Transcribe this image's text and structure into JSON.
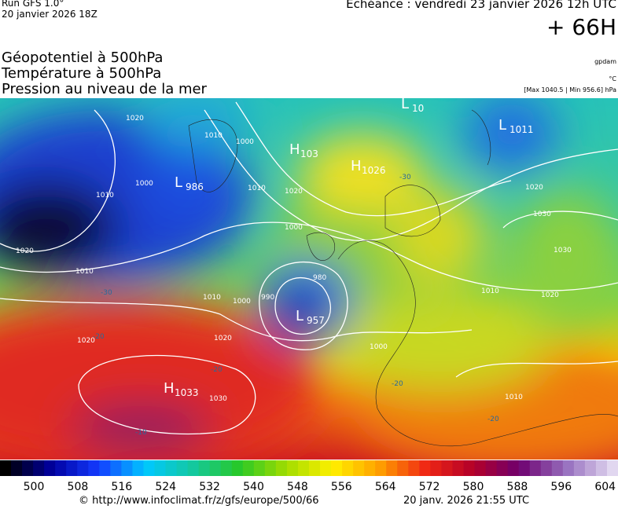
{
  "header": {
    "model": "Run GFS 1.0°",
    "run": "20 janvier 2026 18Z",
    "echeance": "Echéance : vendredi 23 janvier 2026 12h UTC",
    "lead": "+ 66H",
    "titles": [
      "Géopotentiel à 500hPa",
      "Température à 500hPa",
      "Pression au niveau de la mer"
    ],
    "units": [
      "gpdam",
      "°C",
      "[Max 1040.5 | Min 956.6] hPa"
    ]
  },
  "centers": [
    {
      "letter": "L",
      "value": "986"
    },
    {
      "letter": "H",
      "value": "103"
    },
    {
      "letter": "H",
      "value": "1026"
    },
    {
      "letter": "L",
      "value": "1011"
    },
    {
      "letter": "L",
      "value": "957"
    },
    {
      "letter": "H",
      "value": "1033"
    },
    {
      "letter": "L",
      "value": "10"
    }
  ],
  "isobar_labels": [
    "1020",
    "1010",
    "1000",
    "1010",
    "1000",
    "1010",
    "1020",
    "1000",
    "980",
    "990",
    "1000",
    "1010",
    "1020",
    "1020",
    "1010",
    "1020",
    "1030",
    "1010",
    "1020",
    "1030",
    "1030",
    "1020",
    "1000",
    "1010"
  ],
  "temperature_labels": [
    "-30",
    "-20",
    "-20",
    "-10",
    "-20",
    "-20",
    "-30"
  ],
  "colorbar": {
    "labels": [
      "500",
      "508",
      "516",
      "524",
      "532",
      "540",
      "548",
      "556",
      "564",
      "572",
      "580",
      "588",
      "596",
      "604"
    ]
  },
  "footer": {
    "url": "© http://www.infoclimat.fr/z/gfs/europe/500/66",
    "date": "20 janv. 2026 21:55 UTC"
  }
}
